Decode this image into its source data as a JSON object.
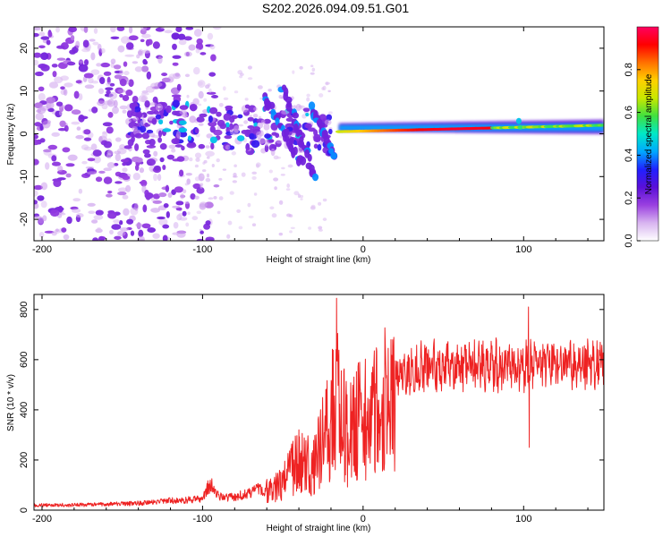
{
  "title": "S202.2026.094.09.51.G01",
  "chart_data": [
    {
      "type": "heatmap",
      "xlabel": "Height of straight line (km)",
      "ylabel": "Frequency (Hz)",
      "xlim": [
        -205,
        150
      ],
      "ylim": [
        -25,
        25
      ],
      "xticks": [
        -200,
        -100,
        0,
        100
      ],
      "xticklabels": [
        "-200",
        "-100",
        "0",
        "100"
      ],
      "yticks": [
        -20,
        -10,
        0,
        10,
        20
      ],
      "yticklabels": [
        "-20",
        "-10",
        "0",
        "10",
        "20"
      ],
      "colorbar": {
        "label": "Normalized spectral amplitude",
        "range": [
          0,
          1
        ],
        "ticks": [
          0,
          0.2,
          0.4,
          0.6,
          0.8
        ],
        "ticklabels": [
          "0.0",
          "0.2",
          "0.4",
          "0.6",
          "0.8"
        ],
        "colormap": [
          "#ffffff",
          "#d8b4f0",
          "#9a40e0",
          "#5a10d8",
          "#2020ff",
          "#00a8ff",
          "#00e8c8",
          "#40e040",
          "#c8e800",
          "#ffd000",
          "#ff7000",
          "#ff0000",
          "#ff0060"
        ]
      },
      "features": {
        "carrier_line": {
          "x_range": [
            -15,
            150
          ],
          "freq": [
            0.5,
            2.0
          ],
          "peak_amplitude": 0.95
        },
        "descending_streaks": [
          {
            "x_start": -62,
            "x_end": -38,
            "freq_start": 9,
            "freq_end": -7
          },
          {
            "x_start": -50,
            "x_end": -30,
            "freq_start": 11,
            "freq_end": -10
          },
          {
            "x_start": -32,
            "x_end": -18,
            "freq_start": 6,
            "freq_end": -5
          }
        ],
        "mid_band": {
          "x_range": [
            -145,
            -20
          ],
          "freq": [
            -4,
            7
          ]
        },
        "noise_region": {
          "x_range": [
            -205,
            -110
          ],
          "freq": [
            -25,
            25
          ]
        },
        "blip_at_km": 97
      }
    },
    {
      "type": "line",
      "xlabel": "Height of straight line (km)",
      "ylabel": "SNR (10 * v/v)",
      "xlim": [
        -205,
        150
      ],
      "ylim": [
        0,
        860
      ],
      "xticks": [
        -200,
        -100,
        0,
        100
      ],
      "xticklabels": [
        "-200",
        "-100",
        "0",
        "100"
      ],
      "yticks": [
        0,
        200,
        400,
        600,
        800
      ],
      "yticklabels": [
        "0",
        "200",
        "400",
        "600",
        "800"
      ],
      "series": [
        {
          "name": "SNR",
          "color": "#ee2222",
          "x": [
            -205,
            -190,
            -170,
            -150,
            -130,
            -120,
            -110,
            -100,
            -95,
            -90,
            -80,
            -70,
            -60,
            -50,
            -45,
            -40,
            -35,
            -30,
            -27,
            -25,
            -20,
            -17,
            -15,
            -10,
            -5,
            0,
            5,
            10,
            15,
            20,
            30,
            40,
            50,
            60,
            80,
            100,
            103,
            110,
            120,
            130,
            140,
            150
          ],
          "y": [
            20,
            20,
            22,
            25,
            30,
            38,
            40,
            45,
            110,
            60,
            50,
            70,
            90,
            100,
            170,
            190,
            180,
            200,
            230,
            280,
            350,
            500,
            420,
            300,
            330,
            370,
            400,
            390,
            470,
            520,
            560,
            575,
            580,
            575,
            580,
            570,
            580,
            580,
            575,
            580,
            585,
            580
          ]
        }
      ],
      "spikes": [
        {
          "x": -16.5,
          "y": 845
        },
        {
          "x": 103,
          "y": 810
        },
        {
          "x": 103.5,
          "y": 250
        },
        {
          "x": -40,
          "y": 320
        }
      ]
    }
  ]
}
